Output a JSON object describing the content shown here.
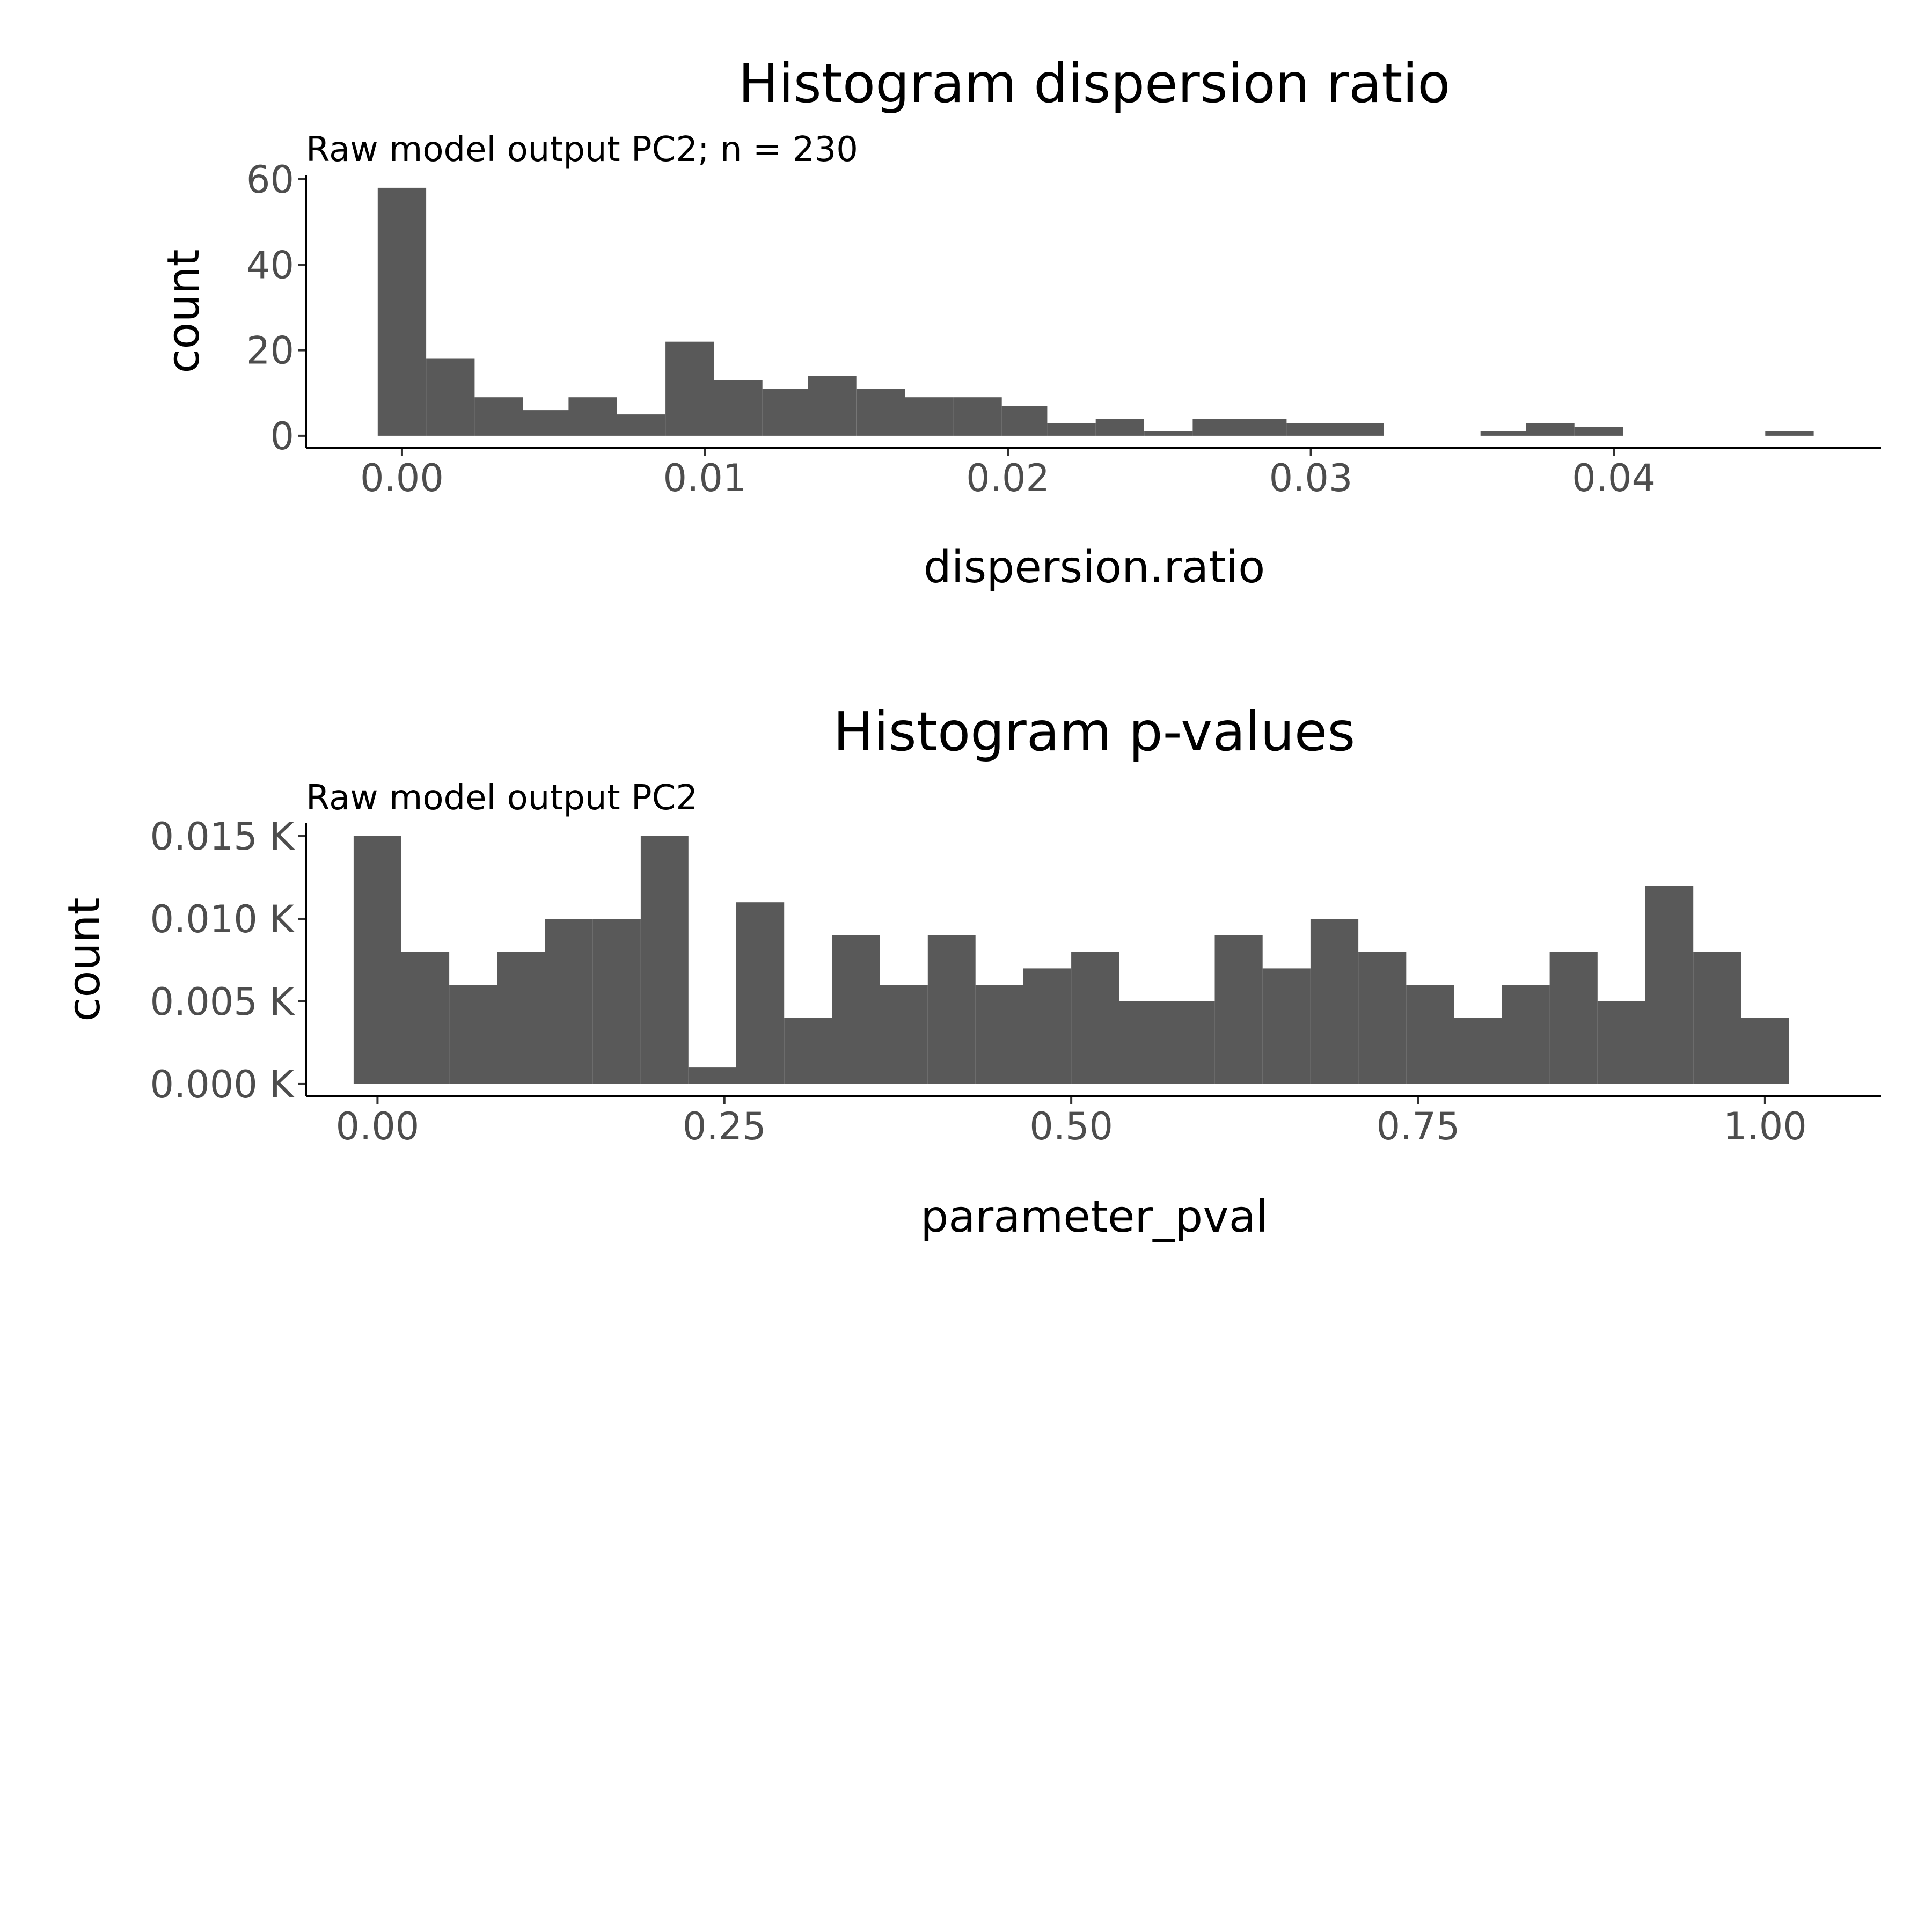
{
  "chart_data": [
    {
      "type": "bar",
      "subtype": "histogram",
      "title": "Histogram dispersion ratio",
      "subtitle": "Raw model output PC2; n = 230",
      "xlabel": "dispersion.ratio",
      "ylabel": "count",
      "xlim": [
        -0.00317,
        0.04882
      ],
      "ylim": [
        -2.9,
        61.0
      ],
      "x_ticks": [
        0.0,
        0.01,
        0.02,
        0.03,
        0.04
      ],
      "x_tick_labels": [
        "0.00",
        "0.01",
        "0.02",
        "0.03",
        "0.04"
      ],
      "y_ticks": [
        0,
        20,
        40,
        60
      ],
      "y_tick_labels": [
        "0",
        "20",
        "40",
        "60"
      ],
      "bar_color": "#595959",
      "grid": false,
      "bins": [
        {
          "x0": -0.0008,
          "x1": 0.0008,
          "value": 58
        },
        {
          "x0": 0.0008,
          "x1": 0.0024,
          "value": 18
        },
        {
          "x0": 0.0024,
          "x1": 0.004,
          "value": 9
        },
        {
          "x0": 0.004,
          "x1": 0.0055,
          "value": 6
        },
        {
          "x0": 0.0055,
          "x1": 0.0071,
          "value": 9
        },
        {
          "x0": 0.0071,
          "x1": 0.0087,
          "value": 5
        },
        {
          "x0": 0.0087,
          "x1": 0.0103,
          "value": 22
        },
        {
          "x0": 0.0103,
          "x1": 0.0119,
          "value": 13
        },
        {
          "x0": 0.0119,
          "x1": 0.0134,
          "value": 11
        },
        {
          "x0": 0.0134,
          "x1": 0.015,
          "value": 14
        },
        {
          "x0": 0.015,
          "x1": 0.0166,
          "value": 11
        },
        {
          "x0": 0.0166,
          "x1": 0.0182,
          "value": 9
        },
        {
          "x0": 0.0182,
          "x1": 0.0198,
          "value": 9
        },
        {
          "x0": 0.0198,
          "x1": 0.0213,
          "value": 7
        },
        {
          "x0": 0.0213,
          "x1": 0.0229,
          "value": 3
        },
        {
          "x0": 0.0229,
          "x1": 0.0245,
          "value": 4
        },
        {
          "x0": 0.0245,
          "x1": 0.0261,
          "value": 1
        },
        {
          "x0": 0.0261,
          "x1": 0.0277,
          "value": 4
        },
        {
          "x0": 0.0277,
          "x1": 0.0292,
          "value": 4
        },
        {
          "x0": 0.0292,
          "x1": 0.0308,
          "value": 3
        },
        {
          "x0": 0.0308,
          "x1": 0.0324,
          "value": 3
        },
        {
          "x0": 0.0324,
          "x1": 0.034,
          "value": 0
        },
        {
          "x0": 0.034,
          "x1": 0.0356,
          "value": 0
        },
        {
          "x0": 0.0356,
          "x1": 0.0371,
          "value": 1
        },
        {
          "x0": 0.0371,
          "x1": 0.0387,
          "value": 3
        },
        {
          "x0": 0.0387,
          "x1": 0.0403,
          "value": 2
        },
        {
          "x0": 0.0403,
          "x1": 0.0419,
          "value": 0
        },
        {
          "x0": 0.0419,
          "x1": 0.0435,
          "value": 0
        },
        {
          "x0": 0.0435,
          "x1": 0.045,
          "value": 0
        },
        {
          "x0": 0.045,
          "x1": 0.0466,
          "value": 1
        }
      ]
    },
    {
      "type": "bar",
      "subtype": "histogram",
      "title": "Histogram p-values",
      "subtitle": "Raw model output PC2",
      "xlabel": "parameter_pval",
      "ylabel": "count",
      "xlim": [
        -0.0516,
        1.0836
      ],
      "ylim": [
        -0.00075,
        0.01578
      ],
      "x_ticks": [
        0.0,
        0.25,
        0.5,
        0.75,
        1.0
      ],
      "x_tick_labels": [
        "0.00",
        "0.25",
        "0.50",
        "0.75",
        "1.00"
      ],
      "y_ticks": [
        0.0,
        0.005,
        0.01,
        0.015
      ],
      "y_tick_labels": [
        "0.000 K",
        "0.005 K",
        "0.010 K",
        "0.015 K"
      ],
      "bar_color": "#595959",
      "grid": false,
      "bins": [
        {
          "x0": -0.0172,
          "x1": 0.0172,
          "value": 0.015
        },
        {
          "x0": 0.0172,
          "x1": 0.0517,
          "value": 0.008
        },
        {
          "x0": 0.0517,
          "x1": 0.0862,
          "value": 0.006
        },
        {
          "x0": 0.0862,
          "x1": 0.1207,
          "value": 0.008
        },
        {
          "x0": 0.1207,
          "x1": 0.1552,
          "value": 0.01
        },
        {
          "x0": 0.1552,
          "x1": 0.1897,
          "value": 0.01
        },
        {
          "x0": 0.1897,
          "x1": 0.2241,
          "value": 0.015
        },
        {
          "x0": 0.2241,
          "x1": 0.2586,
          "value": 0.001
        },
        {
          "x0": 0.2586,
          "x1": 0.2931,
          "value": 0.011
        },
        {
          "x0": 0.2931,
          "x1": 0.3276,
          "value": 0.004
        },
        {
          "x0": 0.3276,
          "x1": 0.3621,
          "value": 0.009
        },
        {
          "x0": 0.3621,
          "x1": 0.3966,
          "value": 0.006
        },
        {
          "x0": 0.3966,
          "x1": 0.431,
          "value": 0.009
        },
        {
          "x0": 0.431,
          "x1": 0.4655,
          "value": 0.006
        },
        {
          "x0": 0.4655,
          "x1": 0.5,
          "value": 0.007
        },
        {
          "x0": 0.5,
          "x1": 0.5345,
          "value": 0.008
        },
        {
          "x0": 0.5345,
          "x1": 0.569,
          "value": 0.005
        },
        {
          "x0": 0.569,
          "x1": 0.6034,
          "value": 0.005
        },
        {
          "x0": 0.6034,
          "x1": 0.6379,
          "value": 0.009
        },
        {
          "x0": 0.6379,
          "x1": 0.6724,
          "value": 0.007
        },
        {
          "x0": 0.6724,
          "x1": 0.7069,
          "value": 0.01
        },
        {
          "x0": 0.7069,
          "x1": 0.7414,
          "value": 0.008
        },
        {
          "x0": 0.7414,
          "x1": 0.7759,
          "value": 0.006
        },
        {
          "x0": 0.7759,
          "x1": 0.8103,
          "value": 0.004
        },
        {
          "x0": 0.8103,
          "x1": 0.8448,
          "value": 0.006
        },
        {
          "x0": 0.8448,
          "x1": 0.8793,
          "value": 0.008
        },
        {
          "x0": 0.8793,
          "x1": 0.9138,
          "value": 0.005
        },
        {
          "x0": 0.9138,
          "x1": 0.9483,
          "value": 0.012
        },
        {
          "x0": 0.9483,
          "x1": 0.9828,
          "value": 0.008
        },
        {
          "x0": 0.9828,
          "x1": 1.0172,
          "value": 0.004
        }
      ]
    }
  ]
}
